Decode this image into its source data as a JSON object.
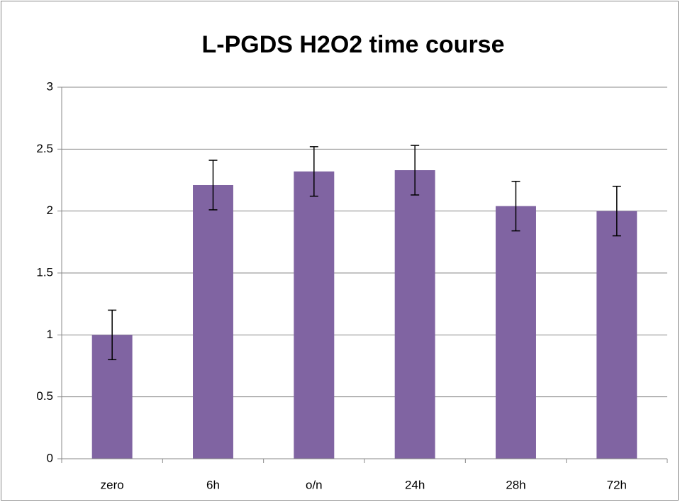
{
  "chart_data": {
    "type": "bar",
    "title": "L-PGDS H2O2 time course",
    "categories": [
      "zero",
      "6h",
      "o/n",
      "24h",
      "28h",
      "72h"
    ],
    "values": [
      1.0,
      2.21,
      2.32,
      2.33,
      2.04,
      2.0
    ],
    "errors": [
      0.2,
      0.2,
      0.2,
      0.2,
      0.2,
      0.2
    ],
    "color": "#8064a2",
    "ylim": [
      0,
      3
    ],
    "yticks": [
      0,
      0.5,
      1,
      1.5,
      2,
      2.5,
      3
    ],
    "grid": true
  }
}
